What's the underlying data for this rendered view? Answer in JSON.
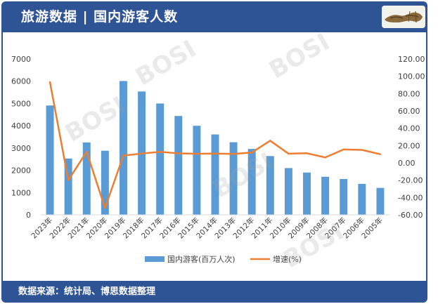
{
  "header": {
    "title": "旅游数据 | 国内游客人数"
  },
  "footer": {
    "source": "数据来源：统计局、博思数据整理"
  },
  "colors": {
    "header_bg": "#2f5496",
    "bar": "#5b9bd5",
    "line": "#ed7d31",
    "axis_text": "#404040"
  },
  "chart_data": {
    "type": "bar",
    "categories": [
      "2023年",
      "2022年",
      "2021年",
      "2020年",
      "2019年",
      "2018年",
      "2017年",
      "2016年",
      "2015年",
      "2014年",
      "2013年",
      "2012年",
      "2011年",
      "2010年",
      "2009年",
      "2008年",
      "2007年",
      "2006年",
      "2005年"
    ],
    "series": [
      {
        "name": "国内游客(百万人次)",
        "type": "bar",
        "axis": "left",
        "values": [
          4910,
          2530,
          3250,
          2880,
          6010,
          5540,
          5000,
          4440,
          4000,
          3610,
          3260,
          2960,
          2640,
          2100,
          1900,
          1710,
          1610,
          1390,
          1210
        ]
      },
      {
        "name": "增速(%)",
        "type": "line",
        "axis": "right",
        "values": [
          93.3,
          -20.0,
          12.8,
          -52.1,
          8.4,
          10.8,
          12.8,
          11.0,
          10.5,
          10.7,
          10.3,
          12.0,
          25.6,
          10.6,
          11.1,
          6.3,
          15.5,
          15.0,
          10.0
        ]
      }
    ],
    "left_axis": {
      "min": 0,
      "max": 7000,
      "ticks": [
        "0",
        "1000",
        "2000",
        "3000",
        "4000",
        "5000",
        "6000",
        "7000"
      ]
    },
    "right_axis": {
      "min": -60,
      "max": 120,
      "ticks": [
        "-60.00",
        "-40.00",
        "-20.00",
        "0.00",
        "20.00",
        "40.00",
        "60.00",
        "80.00",
        "100.00",
        "120.00"
      ]
    },
    "legend": {
      "position": "bottom"
    },
    "grid": false
  }
}
